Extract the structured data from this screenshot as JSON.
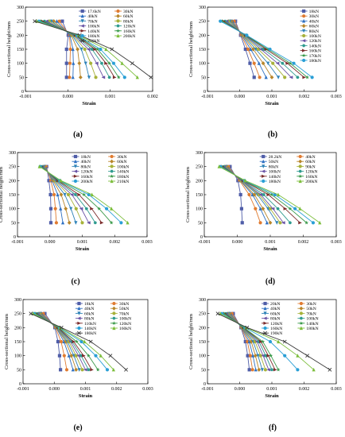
{
  "colors": [
    "#4f5da8",
    "#e07b30",
    "#2d6fc2",
    "#b8862a",
    "#2f83b8",
    "#a7b23a",
    "#6a54a6",
    "#2f9b8f",
    "#7b2b2b",
    "#3a9a4a",
    "#2a9fd6",
    "#7bbd3a",
    "#3a3a3a",
    "#555555"
  ],
  "chart_data": [
    {
      "type": "line",
      "label": "(a)",
      "xlabel": "Strain",
      "ylabel": "Cross-sectional height/mm",
      "xlim": [
        -0.001,
        0.002
      ],
      "xticks": [
        -0.001,
        0.0,
        0.001,
        0.002
      ],
      "xtick_labels": [
        "-0.001",
        "0.000",
        "0.001",
        "0.002"
      ],
      "ylim": [
        0,
        300
      ],
      "yticks": [
        0,
        50,
        100,
        150,
        200,
        250,
        300
      ],
      "ytick_labels": [
        "0",
        "50",
        "100",
        "150",
        "200",
        "250",
        "300"
      ],
      "y": [
        50,
        100,
        150,
        200,
        250
      ],
      "legend_columns": 2,
      "series": [
        {
          "name": "17.6kN",
          "values": [
            -3e-05,
            -3e-05,
            -3e-05,
            1e-05,
            -0.00013
          ]
        },
        {
          "name": "30kN",
          "values": [
            4e-05,
            5e-05,
            6e-05,
            4e-05,
            -0.0002
          ]
        },
        {
          "name": "40kN",
          "values": [
            0.00012,
            0.00013,
            0.00012,
            5e-05,
            -0.00026
          ]
        },
        {
          "name": "60kN",
          "values": [
            0.0003,
            0.00027,
            0.00023,
            8e-05,
            -0.00033
          ]
        },
        {
          "name": "70kN",
          "values": [
            0.0005,
            0.00042,
            0.00032,
            0.0001,
            -0.00039
          ]
        },
        {
          "name": "80kN",
          "values": [
            0.00066,
            0.00054,
            0.0004,
            0.00012,
            -0.00044
          ]
        },
        {
          "name": "100kN",
          "values": [
            0.00084,
            0.00068,
            0.00049,
            0.00014,
            -0.0005
          ]
        },
        {
          "name": "120kN",
          "values": [
            0.00098,
            0.0008,
            0.00057,
            0.00016,
            -0.00055
          ]
        },
        {
          "name": "140kN",
          "values": [
            0.0011,
            0.0009,
            0.00064,
            0.00018,
            -0.0006
          ]
        },
        {
          "name": "160kN",
          "values": [
            0.0012,
            0.00098,
            0.0007,
            0.0002,
            -0.00064
          ]
        },
        {
          "name": "180kN",
          "values": [
            0.00134,
            0.00108,
            0.00077,
            0.00022,
            -0.00068
          ]
        },
        {
          "name": "200kN",
          "values": [
            0.00164,
            0.00128,
            0.0009,
            0.00025,
            -0.00073
          ]
        },
        {
          "name": "210kN",
          "values": [
            0.00196,
            0.00152,
            0.00104,
            0.00028,
            -0.00078
          ]
        }
      ]
    },
    {
      "type": "line",
      "label": "(b)",
      "xlabel": "Strain",
      "ylabel": "Cross-sectional height/mm",
      "xlim": [
        -0.001,
        0.003
      ],
      "xticks": [
        -0.001,
        0.0,
        0.001,
        0.002,
        0.003
      ],
      "xtick_labels": [
        "-0.001",
        "0.000",
        "0.001",
        "0.002",
        "0.003"
      ],
      "ylim": [
        0,
        300
      ],
      "yticks": [
        0,
        50,
        100,
        150,
        200,
        250,
        300
      ],
      "ytick_labels": [
        "0",
        "50",
        "100",
        "150",
        "200",
        "250",
        "300"
      ],
      "y": [
        50,
        100,
        150,
        200,
        250
      ],
      "legend_columns": 1,
      "series": [
        {
          "name": "18kN",
          "values": [
            0.00045,
            0.00032,
            0.00018,
            3e-05,
            -0.00013
          ]
        },
        {
          "name": "30kN",
          "values": [
            0.00062,
            0.00045,
            0.00026,
            5e-05,
            -0.00017
          ]
        },
        {
          "name": "40kN",
          "values": [
            0.00082,
            0.0006,
            0.00034,
            7e-05,
            -0.00022
          ]
        },
        {
          "name": "60kN",
          "values": [
            0.001,
            0.00073,
            0.00042,
            9e-05,
            -0.00026
          ]
        },
        {
          "name": "80kN",
          "values": [
            0.0012,
            0.00088,
            0.0005,
            0.00011,
            -0.0003
          ]
        },
        {
          "name": "100kN",
          "values": [
            0.0014,
            0.00103,
            0.00058,
            0.00013,
            -0.00035
          ]
        },
        {
          "name": "120kN",
          "values": [
            0.0016,
            0.00118,
            0.00066,
            0.00015,
            -0.0004
          ]
        },
        {
          "name": "140kN",
          "values": [
            0.0018,
            0.00133,
            0.00074,
            0.00017,
            -0.00045
          ]
        },
        {
          "name": "160kN",
          "values": [
            0.002,
            0.00148,
            0.00082,
            0.00019,
            -0.0005
          ]
        },
        {
          "name": "170kN",
          "values": [
            0.0021,
            0.00157,
            0.00088,
            0.0002,
            -0.00055
          ]
        },
        {
          "name": "180kN",
          "values": [
            0.00225,
            0.00168,
            0.00094,
            0.00022,
            -0.0006
          ]
        }
      ]
    },
    {
      "type": "line",
      "label": "(c)",
      "xlabel": "Strain",
      "ylabel": "Cross-sectional height/mm",
      "xlim": [
        -0.001,
        0.003
      ],
      "xticks": [
        -0.001,
        0.0,
        0.001,
        0.002,
        0.003
      ],
      "xtick_labels": [
        "-0.001",
        "0.000",
        "0.001",
        "0.002",
        "0.003"
      ],
      "ylim": [
        0,
        300
      ],
      "yticks": [
        0,
        50,
        100,
        150,
        200,
        250,
        300
      ],
      "ytick_labels": [
        "0",
        "50",
        "100",
        "150",
        "200",
        "250",
        "300"
      ],
      "y": [
        50,
        100,
        150,
        200,
        250
      ],
      "legend_columns": 2,
      "series": [
        {
          "name": "18kN",
          "values": [
            3e-05,
            3e-05,
            2e-05,
            -3e-05,
            -0.0001
          ]
        },
        {
          "name": "30kN",
          "values": [
            0.0002,
            0.00017,
            0.00013,
            3e-05,
            -0.00012
          ]
        },
        {
          "name": "40kN",
          "values": [
            0.0004,
            0.00033,
            0.00024,
            7e-05,
            -0.00014
          ]
        },
        {
          "name": "60kN",
          "values": [
            0.0006,
            0.00049,
            0.00035,
            0.0001,
            -0.00016
          ]
        },
        {
          "name": "80kN",
          "values": [
            0.0008,
            0.00065,
            0.00046,
            0.00013,
            -0.00018
          ]
        },
        {
          "name": "100kN",
          "values": [
            0.001,
            0.00081,
            0.00057,
            0.00016,
            -0.0002
          ]
        },
        {
          "name": "120kN",
          "values": [
            0.0012,
            0.00097,
            0.00068,
            0.00019,
            -0.00022
          ]
        },
        {
          "name": "140kN",
          "values": [
            0.0014,
            0.00113,
            0.00079,
            0.00022,
            -0.00024
          ]
        },
        {
          "name": "160kN",
          "values": [
            0.0016,
            0.00129,
            0.0009,
            0.00025,
            -0.00026
          ]
        },
        {
          "name": "180kN",
          "values": [
            0.0019,
            0.00152,
            0.00105,
            0.00028,
            -0.00028
          ]
        },
        {
          "name": "200kN",
          "values": [
            0.0022,
            0.00175,
            0.0012,
            0.00031,
            -0.0003
          ]
        },
        {
          "name": "210kN",
          "values": [
            0.0024,
            0.0019,
            0.0013,
            0.00034,
            -0.00032
          ]
        }
      ]
    },
    {
      "type": "line",
      "label": "(d)",
      "xlabel": "Strain",
      "ylabel": "Cross-sectional height/mm",
      "xlim": [
        -0.001,
        0.003
      ],
      "xticks": [
        -0.001,
        0.0,
        0.001,
        0.002,
        0.003
      ],
      "xtick_labels": [
        "-0.001",
        "0.000",
        "0.001",
        "0.002",
        "0.003"
      ],
      "ylim": [
        0,
        300
      ],
      "yticks": [
        0,
        50,
        100,
        150,
        200,
        250,
        300
      ],
      "ytick_labels": [
        "0",
        "50",
        "100",
        "150",
        "200",
        "250",
        "300"
      ],
      "y": [
        50,
        100,
        150,
        200,
        250
      ],
      "legend_columns": 2,
      "series": [
        {
          "name": "28.2kN",
          "values": [
            0.00015,
            0.00013,
            0.0001,
            2e-05,
            -0.00022
          ]
        },
        {
          "name": "40kN",
          "values": [
            0.0007,
            0.00055,
            0.00036,
            7e-05,
            -0.00027
          ]
        },
        {
          "name": "50kN",
          "values": [
            0.0009,
            0.0007,
            0.00046,
            9e-05,
            -0.0003
          ]
        },
        {
          "name": "60kN",
          "values": [
            0.001,
            0.00078,
            0.00052,
            0.0001,
            -0.00032
          ]
        },
        {
          "name": "80kN",
          "values": [
            0.0012,
            0.00093,
            0.00061,
            0.00012,
            -0.00035
          ]
        },
        {
          "name": "90kN",
          "values": [
            0.0013,
            0.001,
            0.00066,
            0.00013,
            -0.00037
          ]
        },
        {
          "name": "100kN",
          "values": [
            0.0014,
            0.00108,
            0.00071,
            0.00014,
            -0.00039
          ]
        },
        {
          "name": "120kN",
          "values": [
            0.0016,
            0.00123,
            0.0008,
            0.00016,
            -0.00042
          ]
        },
        {
          "name": "140kN",
          "values": [
            0.0019,
            0.00145,
            0.00094,
            0.00018,
            -0.00045
          ]
        },
        {
          "name": "160kN",
          "values": [
            0.0021,
            0.0016,
            0.00104,
            0.0002,
            -0.00048
          ]
        },
        {
          "name": "180kN",
          "values": [
            0.0023,
            0.00175,
            0.00114,
            0.00022,
            -0.00051
          ]
        },
        {
          "name": "200kN",
          "values": [
            0.0025,
            0.0019,
            0.00124,
            0.00024,
            -0.00055
          ]
        }
      ]
    },
    {
      "type": "line",
      "label": "(e)",
      "xlabel": "Strain",
      "ylabel": "Cross-sectional height/mm",
      "xlim": [
        -0.001,
        0.003
      ],
      "xticks": [
        -0.001,
        0.0,
        0.001,
        0.002,
        0.003
      ],
      "xtick_labels": [
        "-0.001",
        "0.000",
        "0.001",
        "0.002",
        "0.003"
      ],
      "ylim": [
        0,
        300
      ],
      "yticks": [
        0,
        50,
        100,
        150,
        200,
        250,
        300
      ],
      "ytick_labels": [
        "0",
        "50",
        "100",
        "150",
        "200",
        "250",
        "300"
      ],
      "y": [
        50,
        100,
        150,
        200,
        250
      ],
      "legend_columns": 2,
      "series": [
        {
          "name": "18kN",
          "values": [
            0.0002,
            0.00017,
            0.00012,
            2e-05,
            -0.0003
          ]
        },
        {
          "name": "30kN",
          "values": [
            0.0004,
            0.00032,
            0.00022,
            4e-05,
            -0.00035
          ]
        },
        {
          "name": "40kN",
          "values": [
            0.0006,
            0.00047,
            0.00031,
            6e-05,
            -0.0004
          ]
        },
        {
          "name": "50kN",
          "values": [
            0.0007,
            0.00055,
            0.00037,
            7e-05,
            -0.00043
          ]
        },
        {
          "name": "60kN",
          "values": [
            0.0008,
            0.00063,
            0.00042,
            8e-05,
            -0.00046
          ]
        },
        {
          "name": "70kN",
          "values": [
            0.0009,
            0.0007,
            0.00047,
            9e-05,
            -0.00049
          ]
        },
        {
          "name": "80kN",
          "values": [
            0.001,
            0.00078,
            0.00052,
            0.0001,
            -0.00052
          ]
        },
        {
          "name": "100kN",
          "values": [
            0.0011,
            0.00086,
            0.00057,
            0.00011,
            -0.00055
          ]
        },
        {
          "name": "110kN",
          "values": [
            0.0012,
            0.00094,
            0.00062,
            0.00012,
            -0.00058
          ]
        },
        {
          "name": "120kN",
          "values": [
            0.0014,
            0.0011,
            0.00072,
            0.00014,
            -0.00061
          ]
        },
        {
          "name": "140kN",
          "values": [
            0.0017,
            0.00133,
            0.00087,
            0.00017,
            -0.00065
          ]
        },
        {
          "name": "160kN",
          "values": [
            0.0019,
            0.00149,
            0.00097,
            0.00019,
            -0.00068
          ]
        },
        {
          "name": "180kN",
          "values": [
            0.0023,
            0.0018,
            0.00117,
            0.00023,
            -0.00075
          ]
        }
      ]
    },
    {
      "type": "line",
      "label": "(f)",
      "xlabel": "Strain",
      "ylabel": "Cross-sectional height/mm",
      "xlim": [
        -0.001,
        0.003
      ],
      "xticks": [
        -0.001,
        0.0,
        0.001,
        0.002,
        0.003
      ],
      "xtick_labels": [
        "-0.001",
        "0.000",
        "0.001",
        "0.002",
        "0.003"
      ],
      "ylim": [
        0,
        300
      ],
      "yticks": [
        0,
        50,
        100,
        150,
        200,
        250,
        300
      ],
      "ytick_labels": [
        "0",
        "50",
        "100",
        "150",
        "200",
        "250",
        "300"
      ],
      "y": [
        50,
        100,
        150,
        200,
        250
      ],
      "legend_columns": 2,
      "series": [
        {
          "name": "20kN",
          "values": [
            0.0003,
            0.00025,
            0.00018,
            4e-05,
            -0.0002
          ]
        },
        {
          "name": "30kN",
          "values": [
            0.0004,
            0.00033,
            0.00024,
            5e-05,
            -0.00024
          ]
        },
        {
          "name": "40kN",
          "values": [
            0.0005,
            0.00041,
            0.0003,
            6e-05,
            -0.00028
          ]
        },
        {
          "name": "50kN",
          "values": [
            0.0006,
            0.00049,
            0.00036,
            7e-05,
            -0.00031
          ]
        },
        {
          "name": "60kN",
          "values": [
            0.0007,
            0.00057,
            0.00042,
            8e-05,
            -0.00034
          ]
        },
        {
          "name": "70kN",
          "values": [
            0.0008,
            0.00065,
            0.00048,
            9e-05,
            -0.00037
          ]
        },
        {
          "name": "80kN",
          "values": [
            0.0009,
            0.00073,
            0.00054,
            0.0001,
            -0.0004
          ]
        },
        {
          "name": "100kN",
          "values": [
            0.001,
            0.00081,
            0.0006,
            0.00011,
            -0.00043
          ]
        },
        {
          "name": "120kN",
          "values": [
            0.0011,
            0.00089,
            0.00066,
            0.00012,
            -0.00046
          ]
        },
        {
          "name": "140kN",
          "values": [
            0.0012,
            0.00097,
            0.00072,
            0.00013,
            -0.00049
          ]
        },
        {
          "name": "160kN",
          "values": [
            0.0018,
            0.0014,
            0.00095,
            0.00017,
            -0.00055
          ]
        },
        {
          "name": "180kN",
          "values": [
            0.0023,
            0.0018,
            0.0012,
            0.0002,
            -0.0006
          ]
        },
        {
          "name": "190kN",
          "values": [
            0.0028,
            0.0021,
            0.0014,
            0.00023,
            -0.00068
          ]
        }
      ]
    }
  ]
}
